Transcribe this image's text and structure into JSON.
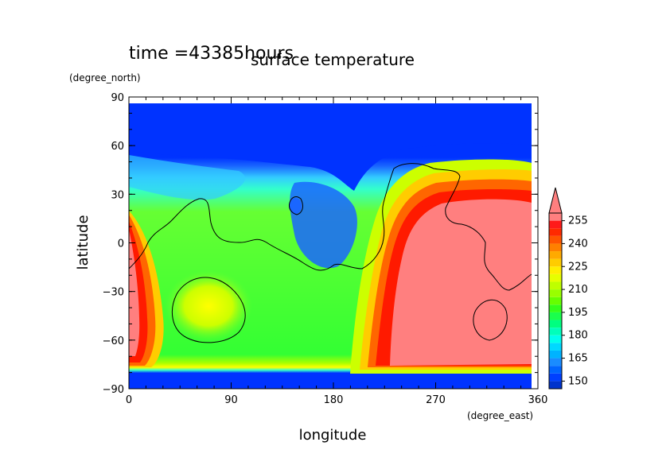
{
  "header": {
    "time_label": "time  =43385hours"
  },
  "chart_data": {
    "type": "heatmap",
    "title": "surface temperature",
    "xlabel": "longitude",
    "ylabel": "latitude",
    "xunit": "(degree_east)",
    "yunit": "(degree_north)",
    "xlim": [
      0,
      360
    ],
    "ylim": [
      -90,
      90
    ],
    "xticks": [
      "0",
      "90",
      "180",
      "270",
      "360"
    ],
    "yticks": [
      "90",
      "60",
      "30",
      "0",
      "−30",
      "−60",
      "−90"
    ],
    "colorbar": {
      "labels": [
        "150",
        "165",
        "180",
        "195",
        "210",
        "225",
        "240",
        "255"
      ],
      "levels": [
        145,
        150,
        155,
        160,
        165,
        170,
        175,
        180,
        185,
        190,
        195,
        200,
        205,
        210,
        215,
        220,
        225,
        230,
        235,
        240,
        245,
        250,
        255,
        260
      ],
      "extend": "max"
    },
    "regions": [
      {
        "name": "polar-cap-north",
        "lon": [
          0,
          356
        ],
        "lat": [
          56,
          86
        ],
        "temp": "<150"
      },
      {
        "name": "polar-cap-south",
        "lon": [
          0,
          356
        ],
        "lat": [
          -90,
          -77
        ],
        "temp": "<150"
      },
      {
        "name": "hot-region-east",
        "lon": [
          240,
          356
        ],
        "lat": [
          -76,
          34
        ],
        "temp": ">255"
      },
      {
        "name": "hot-region-west",
        "lon": [
          0,
          18
        ],
        "lat": [
          -68,
          -5
        ],
        "temp": ">255"
      }
    ]
  }
}
